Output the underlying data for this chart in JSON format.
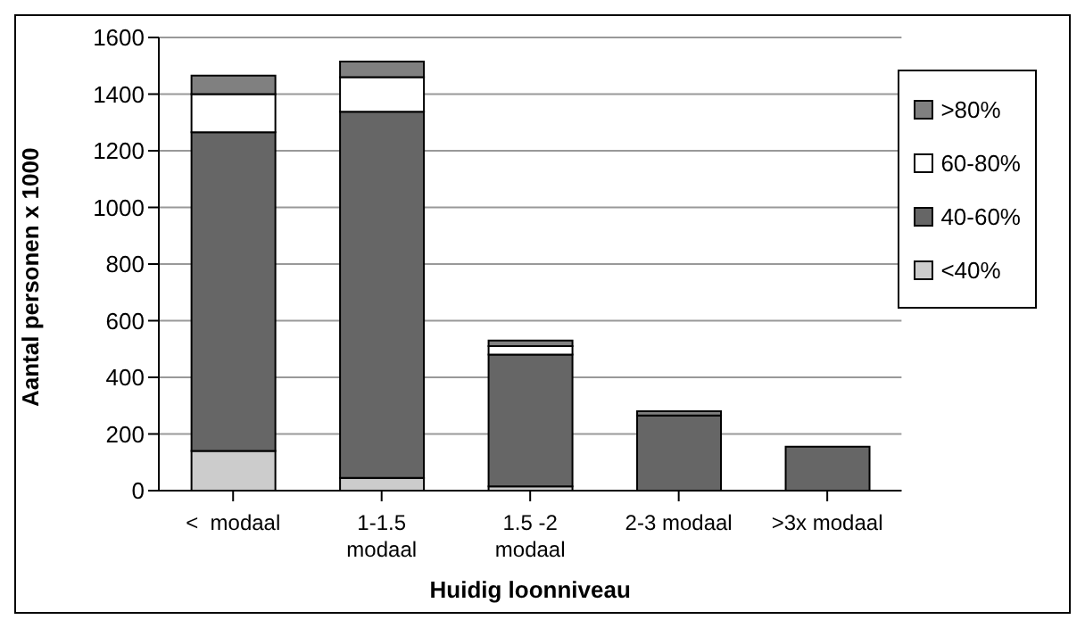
{
  "chart_data": {
    "type": "bar",
    "stacked": true,
    "xlabel": "Huidig loonniveau",
    "ylabel": "Aantal personen x 1000",
    "categories": [
      "<  modaal",
      "1-1.5\nmodaal",
      "1.5 -2\nmodaal",
      "2-3 modaal",
      ">3x modaal"
    ],
    "series": [
      {
        "name": "<40%",
        "color": "#cccccc",
        "values": [
          140,
          45,
          15,
          null,
          null
        ]
      },
      {
        "name": "40-60%",
        "color": "#666666",
        "values": [
          1125,
          1293,
          465,
          265,
          155
        ]
      },
      {
        "name": "60-80%",
        "color": "#ffffff",
        "values": [
          135,
          122,
          30,
          null,
          null
        ]
      },
      {
        "name": ">80%",
        "color": "#808080",
        "values": [
          65,
          55,
          20,
          15,
          null
        ]
      }
    ],
    "ylim": [
      0,
      1600
    ],
    "yticks": [
      0,
      200,
      400,
      600,
      800,
      1000,
      1200,
      1400,
      1600
    ],
    "grid": "y",
    "legend": "top right"
  }
}
